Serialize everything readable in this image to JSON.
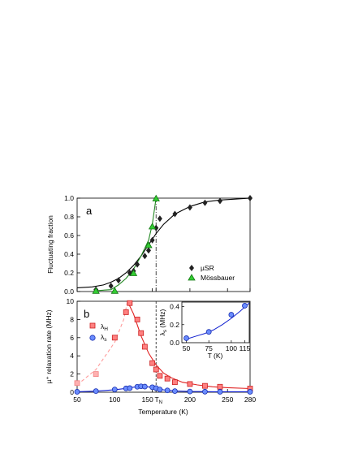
{
  "chart_data": [
    {
      "panel": "a",
      "type": "scatter",
      "ylabel": "Fluctuating fraction",
      "xlim": [
        50,
        280
      ],
      "ylim": [
        0,
        1.0
      ],
      "yticks": [
        "0.0",
        "0.2",
        "0.4",
        "0.6",
        "0.8",
        "1.0"
      ],
      "series": [
        {
          "name": "µSR",
          "marker": "diamond",
          "color": "#222222",
          "x": [
            75,
            95,
            105,
            120,
            125,
            130,
            140,
            145,
            150,
            155,
            160,
            180,
            200,
            220,
            240,
            280
          ],
          "y": [
            0.02,
            0.06,
            0.12,
            0.2,
            0.22,
            0.29,
            0.38,
            0.44,
            0.55,
            0.68,
            0.78,
            0.83,
            0.9,
            0.95,
            0.97,
            1.0
          ]
        },
        {
          "name": "Mössbauer",
          "marker": "triangle",
          "color": "#22aa22",
          "x": [
            75,
            100,
            125,
            145,
            150,
            155
          ],
          "y": [
            0.01,
            0.01,
            0.2,
            0.5,
            0.7,
            1.0
          ]
        }
      ],
      "fits": [
        {
          "color": "#000000",
          "x": [
            50,
            70,
            85,
            95,
            105,
            115,
            125,
            135,
            145,
            155,
            165,
            180,
            200,
            220,
            240,
            260,
            280
          ],
          "y": [
            0.04,
            0.05,
            0.07,
            0.1,
            0.14,
            0.2,
            0.28,
            0.38,
            0.5,
            0.62,
            0.72,
            0.83,
            0.91,
            0.96,
            0.98,
            0.99,
            1.0
          ]
        },
        {
          "color": "#228822",
          "x": [
            75,
            95,
            105,
            115,
            125,
            135,
            145,
            150,
            155
          ],
          "y": [
            0.01,
            0.02,
            0.07,
            0.14,
            0.24,
            0.38,
            0.55,
            0.72,
            1.0
          ]
        }
      ],
      "tn_line": 155
    },
    {
      "panel": "b",
      "type": "scatter",
      "xlabel": "Temperature (K)",
      "ylabel": "µ⁺ relaxation rate (MHz)",
      "xlim": [
        50,
        280
      ],
      "ylim": [
        0,
        10
      ],
      "xticks": [
        {
          "value": 50,
          "label": "50"
        },
        {
          "value": 100,
          "label": "100"
        },
        {
          "value": 150,
          "label": "150"
        },
        {
          "value": 155,
          "label": "T"
        },
        {
          "value": 200,
          "label": "200"
        },
        {
          "value": 250,
          "label": "250"
        },
        {
          "value": 280,
          "label": "280"
        }
      ],
      "tn_label": "T",
      "tn_subscript": "N",
      "yticks": [
        "0",
        "2",
        "4",
        "6",
        "8",
        "10"
      ],
      "series": [
        {
          "name": "λ",
          "subscript": "H",
          "marker": "square",
          "color": "#e84040",
          "x": [
            50,
            75,
            100,
            115,
            120,
            130,
            135,
            140,
            150,
            155,
            160,
            170,
            180,
            200,
            220,
            240,
            280
          ],
          "y": [
            1.0,
            2.0,
            6.0,
            8.8,
            9.8,
            8.0,
            6.5,
            5.0,
            3.2,
            2.5,
            1.8,
            1.5,
            1.1,
            0.9,
            0.7,
            0.6,
            0.4
          ]
        },
        {
          "name": "λ",
          "subscript": "s",
          "marker": "circle",
          "color": "#3a5fe0",
          "x": [
            50,
            75,
            100,
            115,
            120,
            130,
            135,
            140,
            150,
            155,
            160,
            170,
            180,
            200,
            220,
            240,
            280
          ],
          "y": [
            0.05,
            0.12,
            0.3,
            0.42,
            0.45,
            0.6,
            0.65,
            0.62,
            0.55,
            0.45,
            0.3,
            0.2,
            0.12,
            0.08,
            0.06,
            0.05,
            0.05
          ]
        }
      ],
      "fits": [
        {
          "color": "#ff9a9a",
          "dashed": true,
          "x": [
            50,
            75,
            100,
            112,
            117
          ],
          "y": [
            0.8,
            2.5,
            5.5,
            8.0,
            10.0
          ]
        },
        {
          "color": "#e02020",
          "x": [
            117,
            125,
            135,
            145,
            155,
            165,
            175,
            190,
            210,
            230,
            250,
            280
          ],
          "y": [
            10.0,
            8.6,
            6.2,
            4.3,
            3.0,
            2.1,
            1.6,
            1.1,
            0.8,
            0.6,
            0.5,
            0.4
          ]
        },
        {
          "color": "#1020d0",
          "x": [
            50,
            75,
            100,
            115,
            125,
            135,
            145,
            155,
            165,
            180,
            200,
            230,
            280
          ],
          "y": [
            0.05,
            0.12,
            0.28,
            0.42,
            0.55,
            0.62,
            0.58,
            0.42,
            0.26,
            0.14,
            0.08,
            0.05,
            0.05
          ]
        }
      ],
      "tn_line": 155,
      "inset": {
        "xlabel": "T (K)",
        "ylabel": "λ",
        "ylabel_subscript": "s",
        "ylabel_unit": " (MHz)",
        "xlim": [
          45,
          120
        ],
        "ylim": [
          0,
          0.45
        ],
        "xticks": [
          "50",
          "75",
          "100",
          "115"
        ],
        "yticks": [
          "0.0",
          "0.2",
          "0.4"
        ],
        "x": [
          50,
          75,
          100,
          115
        ],
        "y": [
          0.05,
          0.12,
          0.31,
          0.41
        ],
        "fit_x": [
          50,
          60,
          70,
          80,
          90,
          100,
          110,
          120
        ],
        "fit_y": [
          0.04,
          0.07,
          0.1,
          0.14,
          0.2,
          0.27,
          0.35,
          0.44
        ]
      }
    }
  ]
}
